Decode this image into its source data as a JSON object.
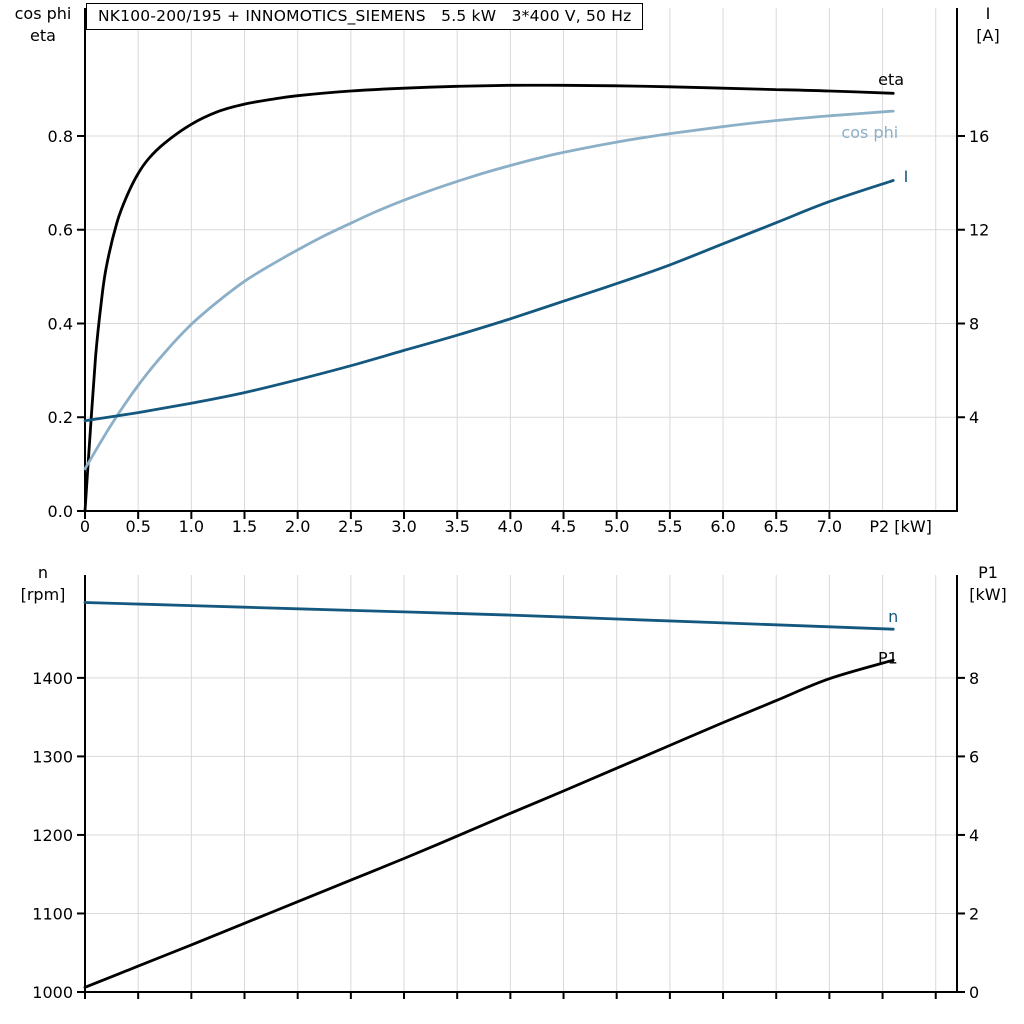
{
  "title": "NK100-200/195 + INNOMOTICS_SIEMENS   5.5 kW   3*400 V, 50 Hz",
  "colors": {
    "curve_black": "#000000",
    "curve_dark_blue": "#14587f",
    "curve_light_blue": "#8cafc8",
    "grid": "#d9d9d9",
    "axis": "#000000",
    "text": "#000000",
    "background": "#ffffff"
  },
  "chart_data": [
    {
      "type": "line",
      "name": "motor-load-curves",
      "x_axis": {
        "min": 0,
        "max": 8.2,
        "tick_step": 0.5,
        "tick_max": 7.0,
        "grid_step": 0.5,
        "grid_max": 8.0,
        "unit_label": "P2 [kW]",
        "unit_label_x": 7.67
      },
      "left_axis": {
        "title_lines": [
          "cos phi",
          "eta"
        ],
        "min": 0,
        "max": 1.073,
        "ticks": [
          0,
          0.2,
          0.4,
          0.6,
          0.8
        ],
        "grid": [
          0.2,
          0.4,
          0.6,
          0.8
        ],
        "decimals": 1
      },
      "right_axis": {
        "title_lines": [
          "I",
          "[A]"
        ],
        "min": 0,
        "max": 21.46,
        "ticks": [
          4,
          8,
          12,
          16
        ],
        "decimals": 0
      },
      "series": [
        {
          "name": "eta",
          "label": "eta",
          "axis": "left",
          "color": "curve_black",
          "label_at": {
            "x": 7.58,
            "y": 0.922
          },
          "points": [
            [
              0,
              0
            ],
            [
              0.05,
              0.17
            ],
            [
              0.1,
              0.33
            ],
            [
              0.15,
              0.44
            ],
            [
              0.2,
              0.52
            ],
            [
              0.3,
              0.615
            ],
            [
              0.4,
              0.675
            ],
            [
              0.5,
              0.72
            ],
            [
              0.6,
              0.752
            ],
            [
              0.75,
              0.785
            ],
            [
              1.0,
              0.825
            ],
            [
              1.25,
              0.852
            ],
            [
              1.5,
              0.868
            ],
            [
              1.75,
              0.878
            ],
            [
              2.0,
              0.886
            ],
            [
              2.5,
              0.896
            ],
            [
              3.0,
              0.902
            ],
            [
              3.5,
              0.906
            ],
            [
              4.0,
              0.908
            ],
            [
              4.5,
              0.908
            ],
            [
              5.0,
              0.907
            ],
            [
              5.5,
              0.905
            ],
            [
              6.0,
              0.902
            ],
            [
              6.5,
              0.899
            ],
            [
              7.0,
              0.896
            ],
            [
              7.6,
              0.891
            ]
          ]
        },
        {
          "name": "cos-phi",
          "label": "cos phi",
          "axis": "left",
          "color": "curve_light_blue",
          "label_at": {
            "x": 7.38,
            "y": 0.808
          },
          "points": [
            [
              0,
              0.09
            ],
            [
              0.25,
              0.185
            ],
            [
              0.5,
              0.268
            ],
            [
              0.75,
              0.338
            ],
            [
              1.0,
              0.398
            ],
            [
              1.25,
              0.447
            ],
            [
              1.5,
              0.49
            ],
            [
              1.75,
              0.525
            ],
            [
              2.0,
              0.557
            ],
            [
              2.25,
              0.587
            ],
            [
              2.5,
              0.614
            ],
            [
              2.75,
              0.64
            ],
            [
              3.0,
              0.663
            ],
            [
              3.25,
              0.684
            ],
            [
              3.5,
              0.703
            ],
            [
              3.75,
              0.721
            ],
            [
              4.0,
              0.737
            ],
            [
              4.25,
              0.752
            ],
            [
              4.5,
              0.765
            ],
            [
              5.0,
              0.787
            ],
            [
              5.5,
              0.805
            ],
            [
              6.0,
              0.82
            ],
            [
              6.5,
              0.833
            ],
            [
              7.0,
              0.843
            ],
            [
              7.6,
              0.853
            ]
          ]
        },
        {
          "name": "current",
          "label": "I",
          "axis": "right",
          "color": "curve_dark_blue",
          "label_at": {
            "x": 7.72,
            "y": 14.3
          },
          "points": [
            [
              0,
              3.85
            ],
            [
              0.5,
              4.2
            ],
            [
              1.0,
              4.6
            ],
            [
              1.5,
              5.05
            ],
            [
              2.0,
              5.6
            ],
            [
              2.5,
              6.2
            ],
            [
              3.0,
              6.85
            ],
            [
              3.5,
              7.5
            ],
            [
              4.0,
              8.2
            ],
            [
              4.5,
              8.95
            ],
            [
              5.0,
              9.7
            ],
            [
              5.5,
              10.5
            ],
            [
              6.0,
              11.4
            ],
            [
              6.5,
              12.3
            ],
            [
              7.0,
              13.2
            ],
            [
              7.6,
              14.1
            ]
          ]
        }
      ]
    },
    {
      "type": "line",
      "name": "speed-power-curves",
      "x_axis": {
        "min": 0,
        "max": 8.2,
        "tick_step": 0.5,
        "tick_max": 8.0,
        "grid_step": 0.5,
        "grid_max": 8.0,
        "unit_label": "",
        "unit_label_x": 0
      },
      "left_axis": {
        "title_lines": [
          "n",
          "[rpm]"
        ],
        "min": 1000,
        "max": 1531,
        "ticks": [
          1000,
          1100,
          1200,
          1300,
          1400
        ],
        "grid": [
          1100,
          1200,
          1300,
          1400
        ],
        "decimals": 0
      },
      "right_axis": {
        "title_lines": [
          "P1",
          "[kW]"
        ],
        "min": 0,
        "max": 10.62,
        "ticks": [
          0,
          2,
          4,
          6,
          8
        ],
        "decimals": 0
      },
      "series": [
        {
          "name": "speed",
          "label": "n",
          "axis": "left",
          "color": "curve_dark_blue",
          "label_at": {
            "x": 7.6,
            "y": 1479
          },
          "points": [
            [
              0,
              1496
            ],
            [
              1,
              1492
            ],
            [
              2,
              1488
            ],
            [
              3,
              1484
            ],
            [
              4,
              1480
            ],
            [
              5,
              1475
            ],
            [
              6,
              1470
            ],
            [
              7,
              1465
            ],
            [
              7.6,
              1462
            ]
          ]
        },
        {
          "name": "input-power",
          "label": "P1",
          "axis": "right",
          "color": "curve_black",
          "label_at": {
            "x": 7.55,
            "y": 8.52
          },
          "points": [
            [
              0,
              0.12
            ],
            [
              0.5,
              0.66
            ],
            [
              1,
              1.2
            ],
            [
              1.5,
              1.75
            ],
            [
              2,
              2.3
            ],
            [
              2.5,
              2.85
            ],
            [
              3,
              3.4
            ],
            [
              3.5,
              3.97
            ],
            [
              4,
              4.55
            ],
            [
              4.5,
              5.12
            ],
            [
              5,
              5.7
            ],
            [
              5.5,
              6.28
            ],
            [
              6,
              6.86
            ],
            [
              6.5,
              7.42
            ],
            [
              7,
              7.98
            ],
            [
              7.6,
              8.45
            ]
          ]
        }
      ]
    }
  ]
}
